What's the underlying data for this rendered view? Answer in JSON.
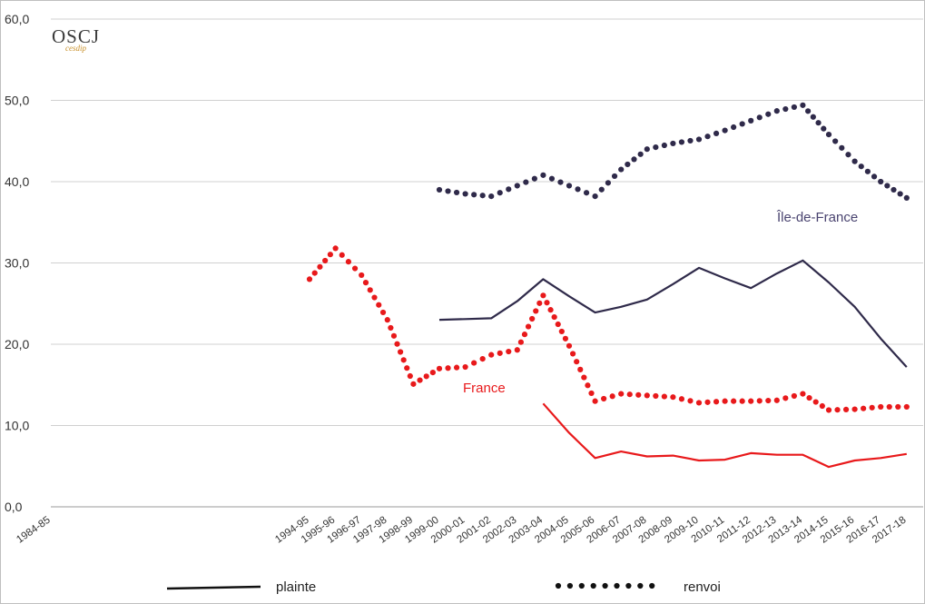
{
  "chart_data": {
    "type": "line",
    "categories": [
      "1984-85",
      "1994-95",
      "1995-96",
      "1996-97",
      "1997-98",
      "1998-99",
      "1999-00",
      "2000-01",
      "2001-02",
      "2002-03",
      "2003-04",
      "2004-05",
      "2005-06",
      "2006-07",
      "2007-08",
      "2008-09",
      "2009-10",
      "2010-11",
      "2011-12",
      "2012-13",
      "2013-14",
      "2014-15",
      "2015-16",
      "2016-17",
      "2017-18"
    ],
    "ylim": [
      0,
      60
    ],
    "yticks": [
      "0,0",
      "10,0",
      "20,0",
      "30,0",
      "40,0",
      "50,0",
      "60,0"
    ],
    "grid": true,
    "series": [
      {
        "group": "Île-de-France",
        "kind": "renvoi",
        "color": "#2f2a4a",
        "style": "dotted",
        "values": [
          null,
          null,
          null,
          null,
          null,
          null,
          39.0,
          38.5,
          38.2,
          39.5,
          40.8,
          39.5,
          38.2,
          41.5,
          44.0,
          44.7,
          45.2,
          46.3,
          47.5,
          48.7,
          49.4,
          45.8,
          42.5,
          40.0,
          38.0
        ]
      },
      {
        "group": "Île-de-France",
        "kind": "plainte",
        "color": "#2f2a4a",
        "style": "solid",
        "values": [
          null,
          null,
          null,
          null,
          null,
          null,
          23.0,
          23.1,
          23.2,
          25.3,
          28.0,
          25.9,
          23.9,
          24.6,
          25.5,
          27.4,
          29.4,
          28.1,
          26.9,
          28.7,
          30.3,
          27.6,
          24.6,
          20.7,
          17.2
        ]
      },
      {
        "group": "France",
        "kind": "renvoi",
        "color": "#e8191b",
        "style": "dotted",
        "values": [
          null,
          28.0,
          31.8,
          28.5,
          23.0,
          15.1,
          17.0,
          17.2,
          18.7,
          19.3,
          26.0,
          19.8,
          13.0,
          13.9,
          13.7,
          13.5,
          12.8,
          13.0,
          13.0,
          13.1,
          13.9,
          11.9,
          12.0,
          12.3,
          12.3
        ]
      },
      {
        "group": "France",
        "kind": "plainte",
        "color": "#e8191b",
        "style": "solid",
        "values": [
          null,
          null,
          null,
          null,
          null,
          null,
          null,
          null,
          null,
          null,
          12.7,
          9.1,
          6.0,
          6.8,
          6.2,
          6.3,
          5.7,
          5.8,
          6.6,
          6.4,
          6.4,
          4.9,
          5.7,
          6.0,
          6.5
        ]
      }
    ],
    "annotations": [
      {
        "text": "Île-de-France",
        "color": "#4a4470"
      },
      {
        "text": "France",
        "color": "#e8191b"
      }
    ],
    "legend": {
      "position": "bottom",
      "items": [
        {
          "label": "plainte",
          "style": "solid"
        },
        {
          "label": "renvoi",
          "style": "dotted"
        }
      ]
    }
  },
  "logo": {
    "main": "OSCJ",
    "sub": "cesdip"
  }
}
